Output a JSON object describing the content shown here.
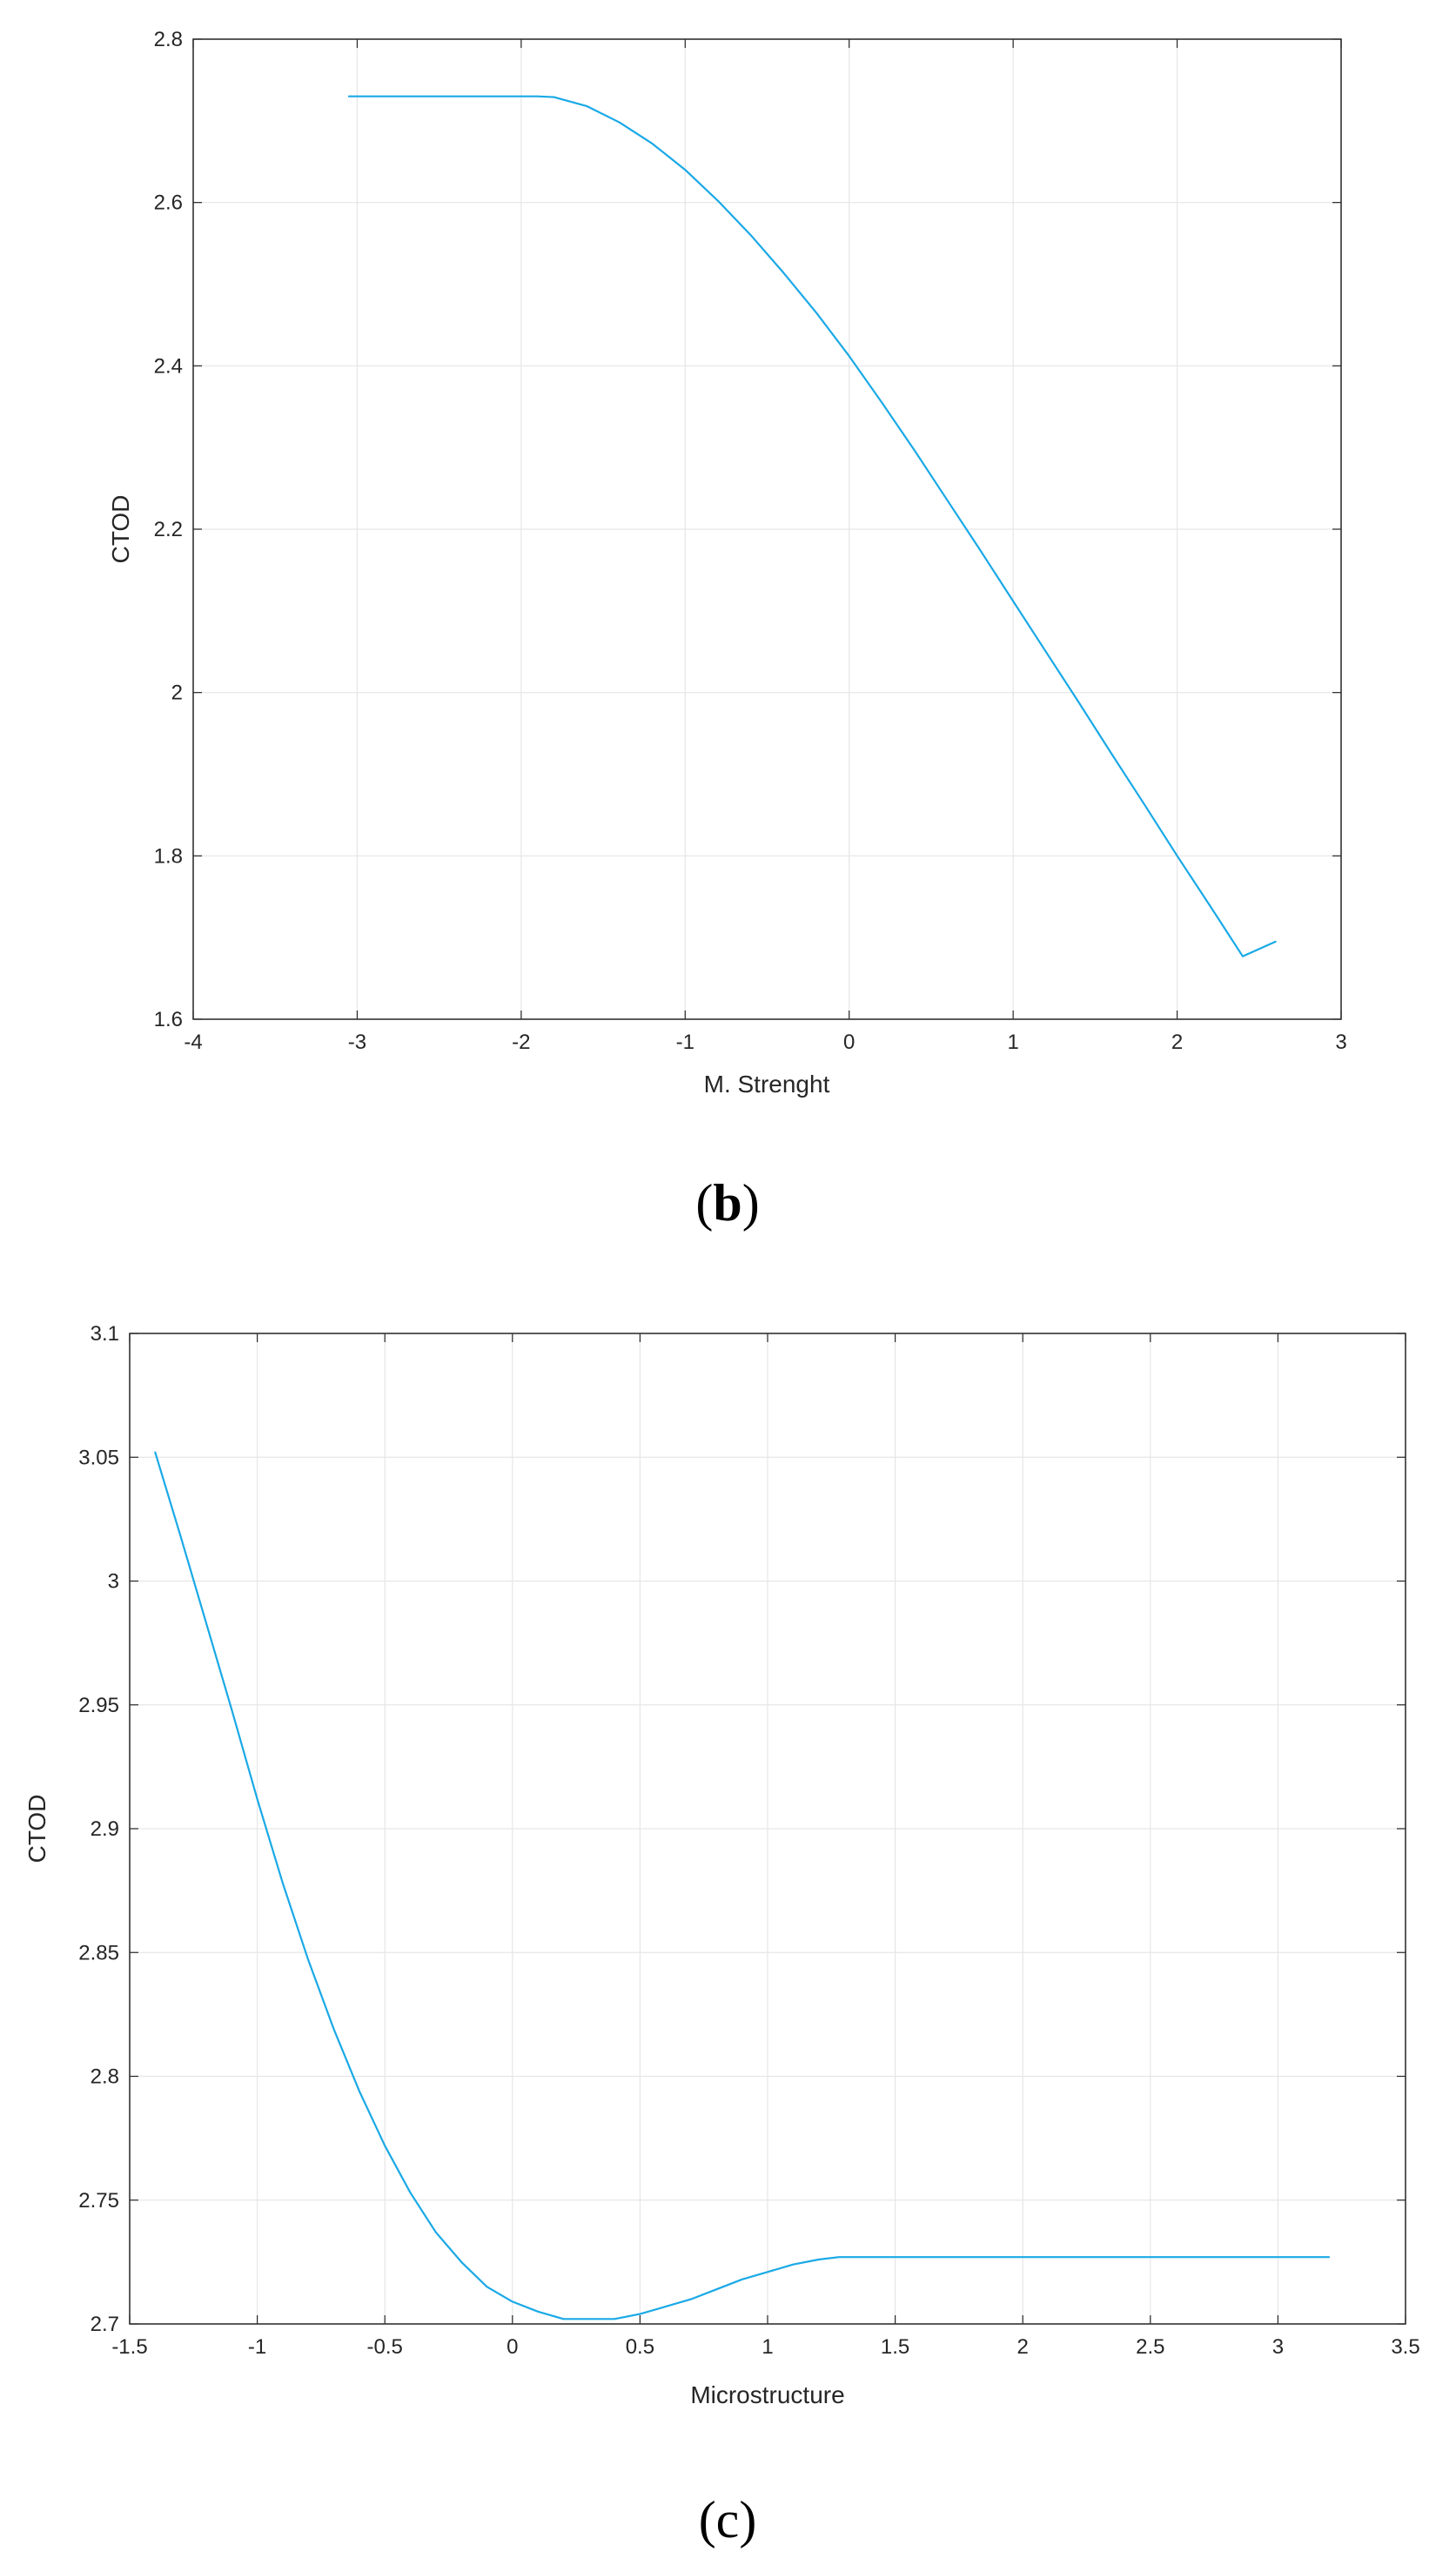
{
  "chart_data": [
    {
      "type": "line",
      "panel": "b",
      "caption": "(b)",
      "caption_letter": "b",
      "xlabel": "M. Strenght",
      "ylabel": "CTOD",
      "xlim": [
        -4,
        3
      ],
      "ylim": [
        1.6,
        2.8
      ],
      "xticks": [
        -4,
        -3,
        -2,
        -1,
        0,
        1,
        2,
        3
      ],
      "xtick_labels": [
        "-4",
        "-3",
        "-2",
        "-1",
        "0",
        "1",
        "2",
        "3"
      ],
      "yticks": [
        1.6,
        1.8,
        2.0,
        2.2,
        2.4,
        2.6,
        2.8
      ],
      "ytick_labels": [
        "1.6",
        "1.8",
        "2",
        "2.2",
        "2.4",
        "2.6",
        "2.8"
      ],
      "grid": true,
      "series": [
        {
          "color": "#1aa9e6",
          "x": [
            -3.05,
            -2.5,
            -2.0,
            -1.9,
            -1.8,
            -1.6,
            -1.4,
            -1.2,
            -1.0,
            -0.8,
            -0.6,
            -0.4,
            -0.2,
            0.0,
            0.2,
            0.4,
            0.6,
            0.8,
            1.0,
            1.2,
            1.4,
            1.6,
            1.8,
            2.0,
            2.2,
            2.4,
            2.6
          ],
          "y": [
            2.73,
            2.73,
            2.73,
            2.73,
            2.729,
            2.718,
            2.698,
            2.672,
            2.64,
            2.602,
            2.56,
            2.514,
            2.465,
            2.412,
            2.355,
            2.296,
            2.235,
            2.174,
            2.112,
            2.05,
            1.988,
            1.925,
            1.863,
            1.8,
            1.739,
            1.677,
            1.695
          ]
        }
      ]
    },
    {
      "type": "line",
      "panel": "c",
      "caption": "(c)",
      "caption_letter": "c",
      "xlabel": "Microstructure",
      "ylabel": "CTOD",
      "xlim": [
        -1.5,
        3.5
      ],
      "ylim": [
        2.7,
        3.1
      ],
      "xticks": [
        -1.5,
        -1.0,
        -0.5,
        0.0,
        0.5,
        1.0,
        1.5,
        2.0,
        2.5,
        3.0,
        3.5
      ],
      "xtick_labels": [
        "-1.5",
        "-1",
        "-0.5",
        "0",
        "0.5",
        "1",
        "1.5",
        "2",
        "2.5",
        "3",
        "3.5"
      ],
      "yticks": [
        2.7,
        2.75,
        2.8,
        2.85,
        2.9,
        2.95,
        3.0,
        3.05,
        3.1
      ],
      "ytick_labels": [
        "2.7",
        "2.75",
        "2.8",
        "2.85",
        "2.9",
        "2.95",
        "3",
        "3.05",
        "3.1"
      ],
      "grid": true,
      "series": [
        {
          "color": "#1aa9e6",
          "x": [
            -1.4,
            -1.3,
            -1.2,
            -1.1,
            -1.0,
            -0.9,
            -0.8,
            -0.7,
            -0.6,
            -0.5,
            -0.4,
            -0.3,
            -0.2,
            -0.1,
            0.0,
            0.1,
            0.2,
            0.3,
            0.4,
            0.5,
            0.6,
            0.7,
            0.8,
            0.9,
            1.0,
            1.1,
            1.2,
            1.28,
            1.5,
            2.0,
            2.5,
            3.0,
            3.2
          ],
          "y": [
            3.052,
            3.018,
            2.983,
            2.948,
            2.912,
            2.878,
            2.847,
            2.819,
            2.794,
            2.772,
            2.753,
            2.737,
            2.725,
            2.715,
            2.709,
            2.705,
            2.702,
            2.702,
            2.702,
            2.704,
            2.707,
            2.71,
            2.714,
            2.718,
            2.721,
            2.724,
            2.726,
            2.727,
            2.727,
            2.727,
            2.727,
            2.727,
            2.727
          ]
        }
      ]
    }
  ]
}
